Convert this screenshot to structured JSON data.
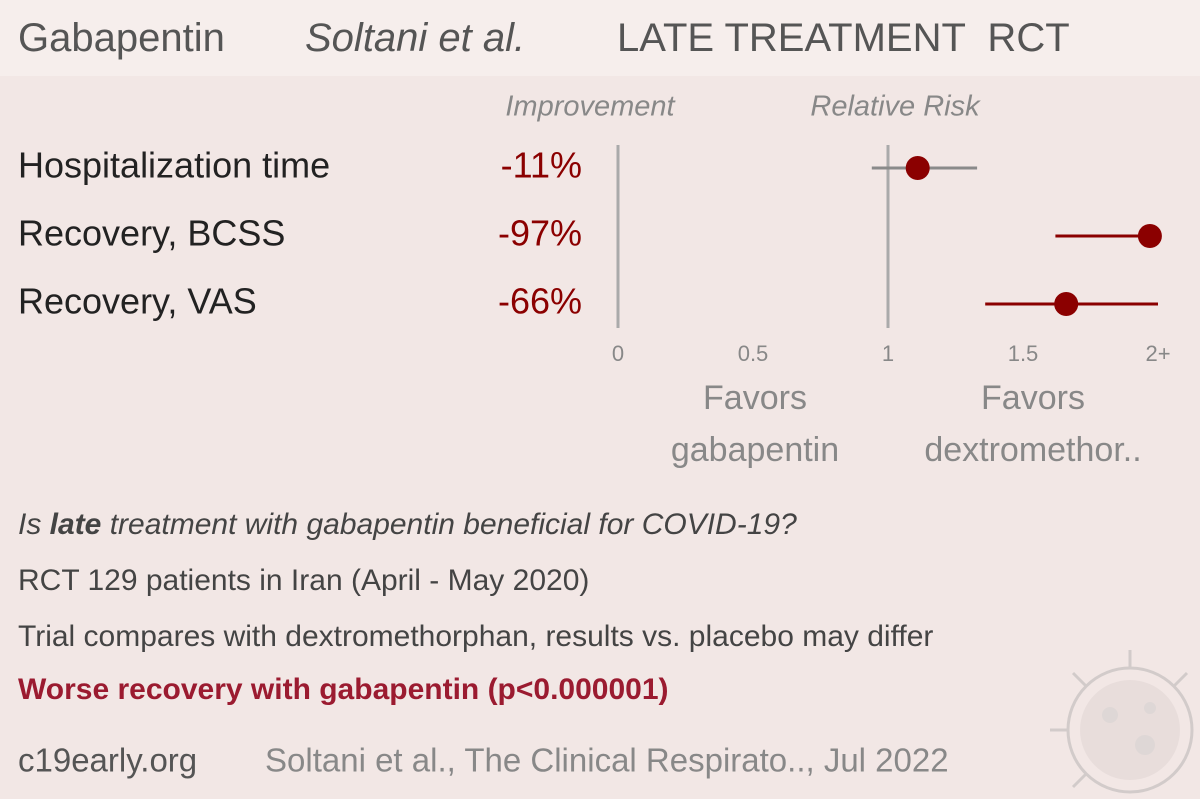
{
  "header": {
    "title_parts": [
      "Gabapentin",
      "Soltani et al.",
      "LATE TREATMENT  RCT"
    ]
  },
  "chart_data": {
    "type": "forest",
    "improvement_header": "Improvement",
    "risk_header": "Relative Risk",
    "categories": [
      "Hospitalization time",
      "Recovery, BCSS",
      "Recovery, VAS"
    ],
    "improvement": {
      "values": [
        -11,
        -97,
        -66
      ],
      "value_labels": [
        "-11%",
        "-97%",
        "-66%"
      ]
    },
    "values": [
      1.11,
      1.97,
      1.66
    ],
    "lower": [
      0.94,
      1.62,
      1.36
    ],
    "upper": [
      1.33,
      2,
      2
    ],
    "ci_colors": [
      "#8a8a8a",
      "#8b0000",
      "#8b0000"
    ],
    "color": "#8b0000",
    "xlim": [
      0,
      2
    ],
    "xticks": [
      0,
      0.5,
      1,
      1.5,
      {
        "value": 2,
        "label": "2+"
      }
    ],
    "favors_left": [
      "Favors",
      "gabapentin"
    ],
    "favors_right": [
      "Favors",
      "dextromethor.."
    ]
  },
  "summary": {
    "question": [
      "Is ",
      "late",
      " treatment with gabapentin beneficial for COVID-19?"
    ],
    "lines": [
      "RCT 129 patients in Iran (April - May 2020)",
      "Trial compares with dextromethorphan, results vs. placebo may differ"
    ],
    "conclusion": "Worse recovery with gabapentin (p<0.000001)"
  },
  "footer": {
    "site": "c19early.org",
    "citation": "Soltani et al., The Clinical Respirato.., Jul 2022"
  }
}
